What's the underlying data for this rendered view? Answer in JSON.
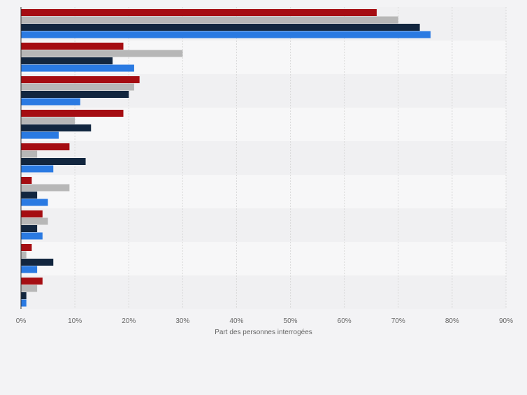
{
  "chart_data": {
    "type": "bar",
    "orientation": "horizontal",
    "categories": [
      "",
      "",
      "",
      "",
      "",
      "",
      "",
      "",
      ""
    ],
    "series": [
      {
        "color": "#a50d12",
        "values": [
          66,
          19,
          22,
          19,
          9,
          2,
          4,
          2,
          4
        ]
      },
      {
        "color": "#b7b7b7",
        "values": [
          70,
          30,
          21,
          10,
          3,
          9,
          5,
          1,
          3
        ]
      },
      {
        "color": "#12263f",
        "values": [
          74,
          17,
          20,
          13,
          12,
          3,
          3,
          6,
          1
        ]
      },
      {
        "color": "#2a7ae2",
        "values": [
          76,
          21,
          11,
          7,
          6,
          5,
          4,
          3,
          1
        ]
      }
    ],
    "xlim": [
      0,
      90
    ],
    "ticks": [
      "0%",
      "10%",
      "20%",
      "30%",
      "40%",
      "50%",
      "60%",
      "70%",
      "80%",
      "90%"
    ],
    "xlabel": "Part des personnes interrogées",
    "grid": true,
    "legend": "none"
  }
}
